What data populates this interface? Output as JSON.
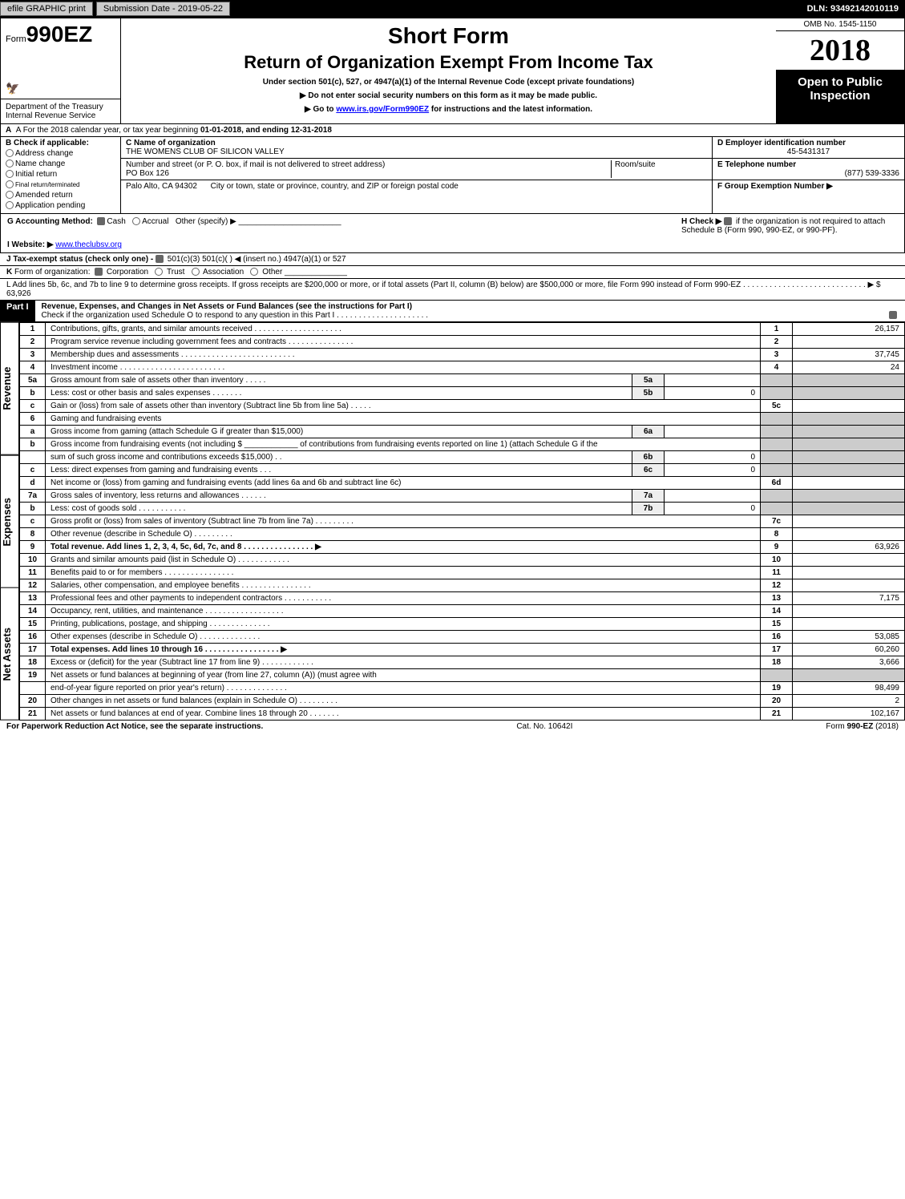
{
  "topbar": {
    "efile_btn": "efile GRAPHIC print",
    "submission": "Submission Date - 2019-05-22",
    "dln": "DLN: 93492142010119"
  },
  "header": {
    "form_prefix": "Form",
    "form_number": "990EZ",
    "short_form": "Short Form",
    "return_title": "Return of Organization Exempt From Income Tax",
    "under_section": "Under section 501(c), 527, or 4947(a)(1) of the Internal Revenue Code (except private foundations)",
    "arrow1": "▶ Do not enter social security numbers on this form as it may be made public.",
    "arrow2_pre": "▶ Go to ",
    "arrow2_link": "www.irs.gov/Form990EZ",
    "arrow2_post": " for instructions and the latest information.",
    "omb": "OMB No. 1545-1150",
    "year": "2018",
    "open_public": "Open to Public Inspection",
    "dept1": "Department of the Treasury",
    "dept2": "Internal Revenue Service"
  },
  "line_a": {
    "text_pre": "A  For the 2018 calendar year, or tax year beginning ",
    "begin": "01-01-2018",
    "mid": ", and ending ",
    "end": "12-31-2018"
  },
  "box_b": {
    "title": "B  Check if applicable:",
    "opts": [
      "Address change",
      "Name change",
      "Initial return",
      "Final return/terminated",
      "Amended return",
      "Application pending"
    ]
  },
  "box_c": {
    "c_label": "C Name of organization",
    "c_name": "THE WOMENS CLUB OF SILICON VALLEY",
    "c_addr_label": "Number and street (or P. O. box, if mail is not delivered to street address)",
    "c_room": "Room/suite",
    "c_addr": "PO Box 126",
    "c_city_label": "City or town, state or province, country, and ZIP or foreign postal code",
    "c_city": "Palo Alto, CA  94302"
  },
  "box_d": {
    "d_label": "D Employer identification number",
    "d_val": "45-5431317",
    "e_label": "E Telephone number",
    "e_val": "(877) 539-3336",
    "f_label": "F Group Exemption Number   ▶"
  },
  "ghi": {
    "g": "G Accounting Method:",
    "g_cash": "Cash",
    "g_accrual": "Accrual",
    "g_other": "Other (specify) ▶",
    "h": "H  Check ▶ ",
    "h_text": " if the organization is not required to attach Schedule B (Form 990, 990-EZ, or 990-PF).",
    "i": "I Website: ▶",
    "i_val": "www.theclubsv.org",
    "j": "J Tax-exempt status (check only one) - ",
    "j_opts": " 501(c)(3)    501(c)(  ) ◀ (insert no.)    4947(a)(1) or    527",
    "k": "K Form of organization:    Corporation    Trust    Association    Other",
    "l_pre": "L Add lines 5b, 6c, and 7b to line 9 to determine gross receipts. If gross receipts are $200,000 or more, or if total assets (Part II, column (B) below) are $500,000 or more, file Form 990 instead of Form 990-EZ  . . . . . . . . . . . . . . . . . . . . . . . . . . . . ▶ $ ",
    "l_val": "63,926"
  },
  "part1": {
    "label": "Part I",
    "title": "Revenue, Expenses, and Changes in Net Assets or Fund Balances (see the instructions for Part I)",
    "check_line": "Check if the organization used Schedule O to respond to any question in this Part I . . . . . . . . . . . . . . . . . . . . ."
  },
  "side_labels": {
    "revenue": "Revenue",
    "expenses": "Expenses",
    "netassets": "Net Assets"
  },
  "lines": [
    {
      "n": "1",
      "desc": "Contributions, gifts, grants, and similar amounts received  . . . . . . . . . . . . . . . . . . . .",
      "rnum": "1",
      "rval": "26,157"
    },
    {
      "n": "2",
      "desc": "Program service revenue including government fees and contracts  . . . . . . . . . . . . . . .",
      "rnum": "2",
      "rval": ""
    },
    {
      "n": "3",
      "desc": "Membership dues and assessments  . . . . . . . . . . . . . . . . . . . . . . . . . .",
      "rnum": "3",
      "rval": "37,745"
    },
    {
      "n": "4",
      "desc": "Investment income  . . . . . . . . . . . . . . . . . . . . . . . .",
      "rnum": "4",
      "rval": "24"
    },
    {
      "n": "5a",
      "desc": "Gross amount from sale of assets other than inventory  . . . . .",
      "inum": "5a",
      "ival": "",
      "shade": true
    },
    {
      "n": "b",
      "desc": "Less: cost or other basis and sales expenses  . . . . . . .",
      "inum": "5b",
      "ival": "0",
      "shade": true
    },
    {
      "n": "c",
      "desc": "Gain or (loss) from sale of assets other than inventory (Subtract line 5b from line 5a)                          . . . . .",
      "rnum": "5c",
      "rval": ""
    },
    {
      "n": "6",
      "desc": "Gaming and fundraising events",
      "shade": true
    },
    {
      "n": "a",
      "desc": "Gross income from gaming (attach Schedule G if greater than $15,000)",
      "inum": "6a",
      "ival": "",
      "shade": true
    },
    {
      "n": "b",
      "desc": "Gross income from fundraising events (not including $ ____________ of contributions from fundraising events reported on line 1) (attach Schedule G if the",
      "shade": true
    },
    {
      "n": "",
      "desc": "sum of such gross income and contributions exceeds $15,000)              . .",
      "inum": "6b",
      "ival": "0",
      "shade": true
    },
    {
      "n": "c",
      "desc": "Less: direct expenses from gaming and fundraising events                 . . .",
      "inum": "6c",
      "ival": "0",
      "shade": true
    },
    {
      "n": "d",
      "desc": "Net income or (loss) from gaming and fundraising events (add lines 6a and 6b and subtract line 6c)",
      "rnum": "6d",
      "rval": ""
    },
    {
      "n": "7a",
      "desc": "Gross sales of inventory, less returns and allowances                . . . . . .",
      "inum": "7a",
      "ival": "",
      "shade": true
    },
    {
      "n": "b",
      "desc": "Less: cost of goods sold                                  . . . . . . . . . . .",
      "inum": "7b",
      "ival": "0",
      "shade": true
    },
    {
      "n": "c",
      "desc": "Gross profit or (loss) from sales of inventory (Subtract line 7b from line 7a)                  . . . . . . . . .",
      "rnum": "7c",
      "rval": ""
    },
    {
      "n": "8",
      "desc": "Other revenue (describe in Schedule O)                                                . . . . . . . . .",
      "rnum": "8",
      "rval": ""
    },
    {
      "n": "9",
      "desc": "Total revenue. Add lines 1, 2, 3, 4, 5c, 6d, 7c, and 8            . . . . . . . . . . . . . . . .  ▶",
      "rnum": "9",
      "rval": "63,926",
      "bold": true
    },
    {
      "n": "10",
      "desc": "Grants and similar amounts paid (list in Schedule O)                  . . . . . . . . . . . .",
      "rnum": "10",
      "rval": ""
    },
    {
      "n": "11",
      "desc": "Benefits paid to or for members                           . . . . . . . . . . . . . . . .",
      "rnum": "11",
      "rval": ""
    },
    {
      "n": "12",
      "desc": "Salaries, other compensation, and employee benefits           . . . . . . . . . . . . . . . .",
      "rnum": "12",
      "rval": ""
    },
    {
      "n": "13",
      "desc": "Professional fees and other payments to independent contractors           . . . . . . . . . . .",
      "rnum": "13",
      "rval": "7,175"
    },
    {
      "n": "14",
      "desc": "Occupancy, rent, utilities, and maintenance             . . . . . . . . . . . . . . . . . .",
      "rnum": "14",
      "rval": ""
    },
    {
      "n": "15",
      "desc": "Printing, publications, postage, and shipping                    . . . . . . . . . . . . . .",
      "rnum": "15",
      "rval": ""
    },
    {
      "n": "16",
      "desc": "Other expenses (describe in Schedule O)                          . . . . . . . . . . . . . .",
      "rnum": "16",
      "rval": "53,085"
    },
    {
      "n": "17",
      "desc": "Total expenses. Add lines 10 through 16                  . . . . . . . . . . . . . . . . .  ▶",
      "rnum": "17",
      "rval": "60,260",
      "bold": true
    },
    {
      "n": "18",
      "desc": "Excess or (deficit) for the year (Subtract line 17 from line 9)                  . . . . . . . . . . . .",
      "rnum": "18",
      "rval": "3,666"
    },
    {
      "n": "19",
      "desc": "Net assets or fund balances at beginning of year (from line 27, column (A)) (must agree with",
      "shade": true
    },
    {
      "n": "",
      "desc": "end-of-year figure reported on prior year's return)                  . . . . . . . . . . . . . .",
      "rnum": "19",
      "rval": "98,499"
    },
    {
      "n": "20",
      "desc": "Other changes in net assets or fund balances (explain in Schedule O)           . . . . . . . . .",
      "rnum": "20",
      "rval": "2"
    },
    {
      "n": "21",
      "desc": "Net assets or fund balances at end of year. Combine lines 18 through 20              . . . . . . .",
      "rnum": "21",
      "rval": "102,167"
    }
  ],
  "footer": {
    "left": "For Paperwork Reduction Act Notice, see the separate instructions.",
    "mid": "Cat. No. 10642I",
    "right": "Form 990-EZ (2018)"
  },
  "colors": {
    "black": "#000000",
    "white": "#ffffff",
    "gray_btn": "#cccccc",
    "shade": "#cccccc",
    "link": "#0000ff"
  }
}
